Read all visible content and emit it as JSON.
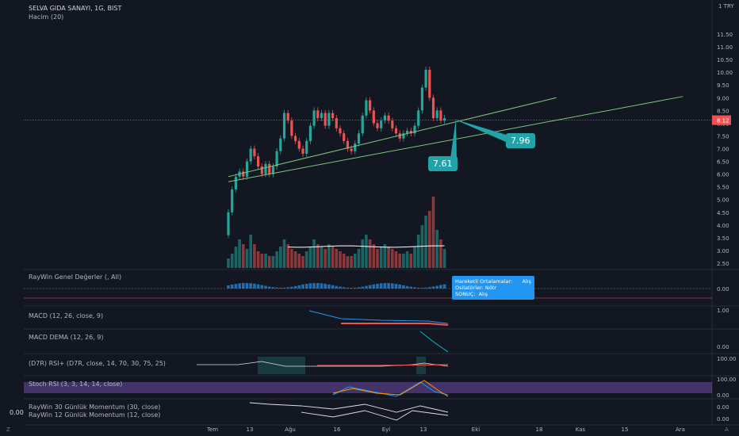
{
  "header": {
    "title": "SELVA GIDA SANAYI, 1G, BIST",
    "volume_label": "Hacim (20)",
    "currency": "1 TRY"
  },
  "price_axis": {
    "ticks": [
      "11.50",
      "11.00",
      "10.50",
      "10.00",
      "9.50",
      "9.00",
      "8.50",
      "8.00",
      "7.50",
      "7.00",
      "6.50",
      "6.00",
      "5.50",
      "5.00",
      "4.50",
      "4.00",
      "3.50",
      "3.00",
      "2.50"
    ],
    "current": "8.12"
  },
  "time_axis": {
    "ticks": [
      "Tem",
      "13",
      "Ağu",
      "16",
      "Eyl",
      "13",
      "Eki",
      "18",
      "Kas",
      "15",
      "Ara"
    ]
  },
  "callouts": {
    "upper": "7.96",
    "lower": "7.61"
  },
  "indicators": {
    "raywin": {
      "label": "RayWin Genel Değerler (, All)",
      "tick": "0.00"
    },
    "macd": {
      "label": "MACD (12, 26, close, 9)",
      "tick": "1.00"
    },
    "macd_dema": {
      "label": "MACD DEMA (12, 26, 9)",
      "tick": "0.00"
    },
    "rsi": {
      "label": "(D7R) RSI+ (D7R, close, 14, 70, 30, 75, 25)",
      "tick": "100.00"
    },
    "stoch": {
      "label": "Stoch RSI (3, 3, 14, 14, close)",
      "tick1": "100.00",
      "tick2": "0.00"
    },
    "mom30": {
      "label": "RayWin 30 Günlük Momentum (30, close)",
      "tick": "0.00"
    },
    "mom12": {
      "label": "RayWin 12 Günlük Momentum (12, close)",
      "tick": "0.00"
    }
  },
  "tooltip": {
    "r1k": "Hareketli Ortalamalar:",
    "r1v": "Alış",
    "r2k": "Osilatörler: Nötr",
    "r3k": "SONUÇ:",
    "r3v": "Alış"
  },
  "side_value": "0.00",
  "corners": {
    "left": "Z",
    "right": "A"
  },
  "colors": {
    "up": "#26a69a",
    "down": "#ef5350",
    "trend": "#7ec87e",
    "callout": "#22a3a8",
    "bg": "#131722"
  },
  "chart_data": {
    "type": "candlestick",
    "title": "SELVA GIDA SANAYI, 1G, BIST",
    "ylim": [
      2.25,
      11.75
    ],
    "candles": [
      [
        3.6,
        4.5
      ],
      [
        4.5,
        5.4
      ],
      [
        5.4,
        5.9
      ],
      [
        5.9,
        6.1
      ],
      [
        6.1,
        5.9
      ],
      [
        5.9,
        6.5
      ],
      [
        6.5,
        7.0
      ],
      [
        7.0,
        6.7
      ],
      [
        6.7,
        6.3
      ],
      [
        6.3,
        6.0
      ],
      [
        6.0,
        6.4
      ],
      [
        6.4,
        6.0
      ],
      [
        6.0,
        6.3
      ],
      [
        6.3,
        6.9
      ],
      [
        6.9,
        7.4
      ],
      [
        7.4,
        8.4
      ],
      [
        8.4,
        8.1
      ],
      [
        8.1,
        7.5
      ],
      [
        7.5,
        7.3
      ],
      [
        7.3,
        7.0
      ],
      [
        7.0,
        6.8
      ],
      [
        6.8,
        7.3
      ],
      [
        7.3,
        7.9
      ],
      [
        7.9,
        8.5
      ],
      [
        8.5,
        8.2
      ],
      [
        8.2,
        8.4
      ],
      [
        8.4,
        7.9
      ],
      [
        7.9,
        8.4
      ],
      [
        8.4,
        8.2
      ],
      [
        8.2,
        7.8
      ],
      [
        7.8,
        7.6
      ],
      [
        7.6,
        7.3
      ],
      [
        7.3,
        7.0
      ],
      [
        7.0,
        6.9
      ],
      [
        6.9,
        7.2
      ],
      [
        7.2,
        7.6
      ],
      [
        7.6,
        8.3
      ],
      [
        8.3,
        8.9
      ],
      [
        8.9,
        8.5
      ],
      [
        8.5,
        8.0
      ],
      [
        8.0,
        7.8
      ],
      [
        7.8,
        8.1
      ],
      [
        8.1,
        8.3
      ],
      [
        8.3,
        8.1
      ],
      [
        8.1,
        7.8
      ],
      [
        7.8,
        7.6
      ],
      [
        7.6,
        7.4
      ],
      [
        7.4,
        7.6
      ],
      [
        7.6,
        7.7
      ],
      [
        7.7,
        7.6
      ],
      [
        7.6,
        7.9
      ],
      [
        7.9,
        8.5
      ],
      [
        8.5,
        9.4
      ],
      [
        9.4,
        10.1
      ],
      [
        10.1,
        9.0
      ],
      [
        9.0,
        8.2
      ],
      [
        8.2,
        8.5
      ],
      [
        8.5,
        8.1
      ],
      [
        8.1,
        8.2
      ]
    ],
    "volumes": [
      4,
      6,
      9,
      12,
      10,
      8,
      14,
      10,
      7,
      6,
      6,
      5,
      5,
      7,
      9,
      12,
      10,
      8,
      7,
      6,
      5,
      7,
      9,
      12,
      10,
      9,
      8,
      10,
      9,
      8,
      7,
      6,
      5,
      5,
      6,
      8,
      12,
      14,
      12,
      10,
      8,
      9,
      10,
      9,
      8,
      7,
      6,
      6,
      7,
      6,
      9,
      14,
      18,
      22,
      24,
      30,
      16,
      12,
      8
    ],
    "trendlines": [
      {
        "from": [
          0,
          5.7
        ],
        "to": [
          122,
          9.05
        ]
      },
      {
        "from": [
          0,
          5.9
        ],
        "to": [
          88,
          9.0
        ]
      }
    ]
  }
}
